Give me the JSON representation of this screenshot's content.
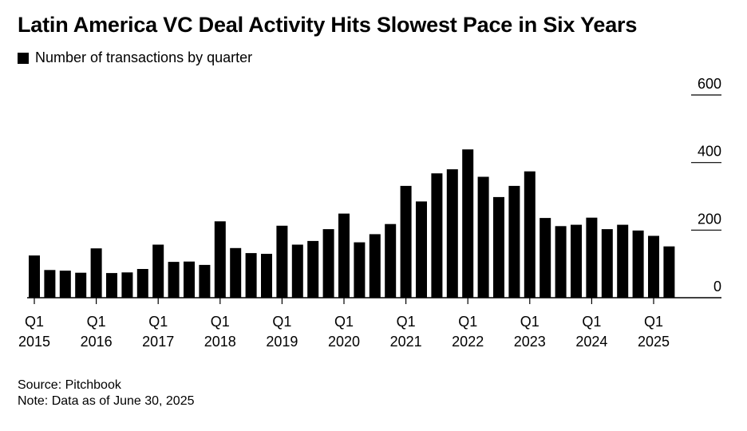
{
  "title": "Latin America VC Deal Activity Hits Slowest Pace in Six Years",
  "legend": {
    "label": "Number of transactions by quarter",
    "color": "#000000"
  },
  "source": "Source: Pitchbook",
  "note": "Note: Data as of June 30, 2025",
  "chart_data": {
    "type": "bar",
    "xlabel": "",
    "ylabel": "",
    "ylim": [
      0,
      600
    ],
    "yticks": [
      0,
      200,
      400,
      600
    ],
    "grid": false,
    "legend_position": "top-left",
    "bar_color": "#000000",
    "categories": [
      "Q1 2015",
      "Q2 2015",
      "Q3 2015",
      "Q4 2015",
      "Q1 2016",
      "Q2 2016",
      "Q3 2016",
      "Q4 2016",
      "Q1 2017",
      "Q2 2017",
      "Q3 2017",
      "Q4 2017",
      "Q1 2018",
      "Q2 2018",
      "Q3 2018",
      "Q4 2018",
      "Q1 2019",
      "Q2 2019",
      "Q3 2019",
      "Q4 2019",
      "Q1 2020",
      "Q2 2020",
      "Q3 2020",
      "Q4 2020",
      "Q1 2021",
      "Q2 2021",
      "Q3 2021",
      "Q4 2021",
      "Q1 2022",
      "Q2 2022",
      "Q3 2022",
      "Q4 2022",
      "Q1 2023",
      "Q2 2023",
      "Q3 2023",
      "Q4 2023",
      "Q1 2024",
      "Q2 2024",
      "Q3 2024",
      "Q4 2024",
      "Q1 2025",
      "Q2 2025"
    ],
    "values": [
      125,
      82,
      80,
      74,
      146,
      73,
      75,
      85,
      157,
      106,
      107,
      97,
      226,
      147,
      132,
      130,
      213,
      157,
      168,
      203,
      249,
      164,
      188,
      218,
      331,
      285,
      368,
      380,
      439,
      358,
      298,
      331,
      374,
      236,
      212,
      216,
      237,
      203,
      216,
      199,
      183,
      152
    ],
    "x_tick_labels": [
      {
        "index": 0,
        "quarter": "Q1",
        "year": "2015"
      },
      {
        "index": 4,
        "quarter": "Q1",
        "year": "2016"
      },
      {
        "index": 8,
        "quarter": "Q1",
        "year": "2017"
      },
      {
        "index": 12,
        "quarter": "Q1",
        "year": "2018"
      },
      {
        "index": 16,
        "quarter": "Q1",
        "year": "2019"
      },
      {
        "index": 20,
        "quarter": "Q1",
        "year": "2020"
      },
      {
        "index": 24,
        "quarter": "Q1",
        "year": "2021"
      },
      {
        "index": 28,
        "quarter": "Q1",
        "year": "2022"
      },
      {
        "index": 32,
        "quarter": "Q1",
        "year": "2023"
      },
      {
        "index": 36,
        "quarter": "Q1",
        "year": "2024"
      },
      {
        "index": 40,
        "quarter": "Q1",
        "year": "2025"
      }
    ]
  }
}
